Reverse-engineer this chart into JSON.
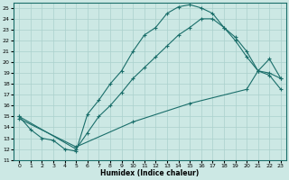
{
  "xlabel": "Humidex (Indice chaleur)",
  "bg_color": "#cce8e4",
  "grid_color": "#aad0cc",
  "line_color": "#1a6e6a",
  "xlim": [
    -0.5,
    23.5
  ],
  "ylim": [
    11,
    25.5
  ],
  "xticks": [
    0,
    1,
    2,
    3,
    4,
    5,
    6,
    7,
    8,
    9,
    10,
    11,
    12,
    13,
    14,
    15,
    16,
    17,
    18,
    19,
    20,
    21,
    22,
    23
  ],
  "yticks": [
    11,
    12,
    13,
    14,
    15,
    16,
    17,
    18,
    19,
    20,
    21,
    22,
    23,
    24,
    25
  ],
  "line1_x": [
    0,
    1,
    2,
    3,
    4,
    5,
    6,
    7,
    8,
    9,
    10,
    11,
    12,
    13,
    14,
    15,
    16,
    17,
    18,
    19,
    20,
    21,
    22,
    23
  ],
  "line1_y": [
    15.0,
    13.8,
    13.0,
    12.8,
    12.0,
    11.8,
    15.2,
    16.5,
    18.0,
    19.2,
    21.0,
    22.5,
    23.2,
    24.5,
    25.1,
    25.3,
    25.0,
    24.5,
    23.2,
    22.3,
    21.0,
    19.2,
    18.8,
    17.5
  ],
  "line2_x": [
    0,
    5,
    6,
    7,
    8,
    9,
    10,
    11,
    12,
    13,
    14,
    15,
    16,
    17,
    18,
    19,
    20,
    21,
    22,
    23
  ],
  "line2_y": [
    15.0,
    12.0,
    13.5,
    15.0,
    16.0,
    17.2,
    18.5,
    19.5,
    20.5,
    21.5,
    22.5,
    23.2,
    24.0,
    24.0,
    23.2,
    22.0,
    20.5,
    19.2,
    19.0,
    18.5
  ],
  "line3_x": [
    0,
    5,
    10,
    15,
    20,
    21,
    22,
    23
  ],
  "line3_y": [
    14.8,
    12.2,
    14.5,
    16.2,
    17.5,
    19.2,
    20.3,
    18.5
  ],
  "figsize": [
    3.2,
    2.0
  ],
  "dpi": 100
}
